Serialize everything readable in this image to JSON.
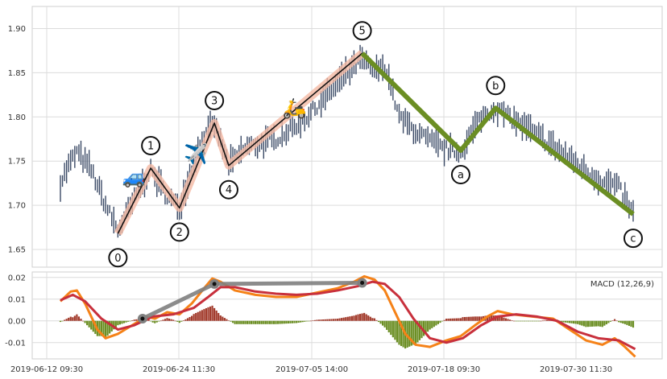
{
  "chart_data": [
    {
      "type": "candlestick",
      "panel": "price",
      "x_ticks": [
        "2019-06-12 09:30",
        "2019-06-24 11:30",
        "2019-07-05 14:00",
        "2019-07-18 09:30",
        "2019-07-30 11:30"
      ],
      "y_ticks": [
        "1.65",
        "1.70",
        "1.75",
        "1.80",
        "1.85",
        "1.90"
      ],
      "ylim": [
        1.63,
        1.925
      ],
      "grid": true,
      "n_bars": 280,
      "colors": {
        "bar": "#3b4a66",
        "impulse_line": "#111111",
        "impulse_band": "#f4b9a4",
        "correction_line": "#6b8e23"
      },
      "anchors": [
        {
          "i": 0,
          "p": 1.725
        },
        {
          "i": 4,
          "p": 1.745
        },
        {
          "i": 8,
          "p": 1.76
        },
        {
          "i": 15,
          "p": 1.74
        },
        {
          "i": 22,
          "p": 1.7
        },
        {
          "i": 28,
          "p": 1.672
        },
        {
          "i": 38,
          "p": 1.715
        },
        {
          "i": 44,
          "p": 1.74
        },
        {
          "i": 52,
          "p": 1.71
        },
        {
          "i": 58,
          "p": 1.698
        },
        {
          "i": 68,
          "p": 1.77
        },
        {
          "i": 75,
          "p": 1.792
        },
        {
          "i": 82,
          "p": 1.745
        },
        {
          "i": 90,
          "p": 1.765
        },
        {
          "i": 105,
          "p": 1.775
        },
        {
          "i": 120,
          "p": 1.8
        },
        {
          "i": 130,
          "p": 1.825
        },
        {
          "i": 140,
          "p": 1.85
        },
        {
          "i": 147,
          "p": 1.865
        },
        {
          "i": 153,
          "p": 1.85
        },
        {
          "i": 158,
          "p": 1.86
        },
        {
          "i": 165,
          "p": 1.8
        },
        {
          "i": 175,
          "p": 1.78
        },
        {
          "i": 185,
          "p": 1.765
        },
        {
          "i": 195,
          "p": 1.76
        },
        {
          "i": 205,
          "p": 1.8
        },
        {
          "i": 212,
          "p": 1.81
        },
        {
          "i": 222,
          "p": 1.795
        },
        {
          "i": 235,
          "p": 1.775
        },
        {
          "i": 250,
          "p": 1.75
        },
        {
          "i": 262,
          "p": 1.73
        },
        {
          "i": 272,
          "p": 1.72
        },
        {
          "i": 279,
          "p": 1.69
        }
      ],
      "wave_points": [
        {
          "label": "0",
          "i": 28,
          "p": 1.668,
          "pos": "below"
        },
        {
          "label": "1",
          "i": 44,
          "p": 1.742,
          "pos": "above"
        },
        {
          "label": "2",
          "i": 58,
          "p": 1.697,
          "pos": "below"
        },
        {
          "label": "3",
          "i": 75,
          "p": 1.793,
          "pos": "above"
        },
        {
          "label": "4",
          "i": 82,
          "p": 1.745,
          "pos": "below"
        },
        {
          "label": "5",
          "i": 147,
          "p": 1.872,
          "pos": "above"
        },
        {
          "label": "a",
          "i": 195,
          "p": 1.762,
          "pos": "below"
        },
        {
          "label": "b",
          "i": 212,
          "p": 1.81,
          "pos": "above"
        },
        {
          "label": "c",
          "i": 279,
          "p": 1.69,
          "pos": "below"
        }
      ],
      "emojis": [
        {
          "icon": "🚙",
          "i": 36,
          "p": 1.732
        },
        {
          "icon": "✈️",
          "i": 66,
          "p": 1.758
        },
        {
          "icon": "🛵",
          "i": 114,
          "p": 1.81
        }
      ]
    },
    {
      "type": "macd",
      "panel": "indicator",
      "legend": "MACD (12,26,9)",
      "legend_position": "top-right",
      "y_ticks": [
        "0.02",
        "0.01",
        "0.00",
        "-0.01"
      ],
      "ylim": [
        -0.0175,
        0.0225
      ],
      "grid": true,
      "colors": {
        "macd": "#f58218",
        "signal": "#c8303c",
        "hist_pos": "#a23b2c",
        "hist_neg": "#6b8e23",
        "divergence": "#808080"
      },
      "macd": [
        {
          "i": 0,
          "v": 0.009
        },
        {
          "i": 5,
          "v": 0.0135
        },
        {
          "i": 8,
          "v": 0.014
        },
        {
          "i": 12,
          "v": 0.008
        },
        {
          "i": 18,
          "v": -0.004
        },
        {
          "i": 22,
          "v": -0.008
        },
        {
          "i": 28,
          "v": -0.006
        },
        {
          "i": 35,
          "v": -0.002
        },
        {
          "i": 42,
          "v": 0.002
        },
        {
          "i": 46,
          "v": 0.001
        },
        {
          "i": 52,
          "v": 0.004
        },
        {
          "i": 58,
          "v": 0.003
        },
        {
          "i": 64,
          "v": 0.008
        },
        {
          "i": 70,
          "v": 0.015
        },
        {
          "i": 74,
          "v": 0.0195
        },
        {
          "i": 78,
          "v": 0.018
        },
        {
          "i": 85,
          "v": 0.014
        },
        {
          "i": 95,
          "v": 0.012
        },
        {
          "i": 105,
          "v": 0.011
        },
        {
          "i": 115,
          "v": 0.011
        },
        {
          "i": 125,
          "v": 0.013
        },
        {
          "i": 135,
          "v": 0.015
        },
        {
          "i": 143,
          "v": 0.018
        },
        {
          "i": 148,
          "v": 0.0205
        },
        {
          "i": 153,
          "v": 0.019
        },
        {
          "i": 158,
          "v": 0.014
        },
        {
          "i": 163,
          "v": 0.004
        },
        {
          "i": 168,
          "v": -0.006
        },
        {
          "i": 173,
          "v": -0.011
        },
        {
          "i": 180,
          "v": -0.012
        },
        {
          "i": 188,
          "v": -0.009
        },
        {
          "i": 195,
          "v": -0.007
        },
        {
          "i": 202,
          "v": -0.002
        },
        {
          "i": 208,
          "v": 0.002
        },
        {
          "i": 213,
          "v": 0.0045
        },
        {
          "i": 220,
          "v": 0.003
        },
        {
          "i": 230,
          "v": 0.002
        },
        {
          "i": 240,
          "v": 0.001
        },
        {
          "i": 248,
          "v": -0.004
        },
        {
          "i": 256,
          "v": -0.009
        },
        {
          "i": 264,
          "v": -0.011
        },
        {
          "i": 270,
          "v": -0.008
        },
        {
          "i": 275,
          "v": -0.012
        },
        {
          "i": 280,
          "v": -0.0165
        }
      ],
      "signal": [
        {
          "i": 0,
          "v": 0.0095
        },
        {
          "i": 6,
          "v": 0.012
        },
        {
          "i": 12,
          "v": 0.009
        },
        {
          "i": 20,
          "v": 0.001
        },
        {
          "i": 28,
          "v": -0.004
        },
        {
          "i": 36,
          "v": -0.002
        },
        {
          "i": 45,
          "v": 0.002
        },
        {
          "i": 55,
          "v": 0.003
        },
        {
          "i": 65,
          "v": 0.006
        },
        {
          "i": 72,
          "v": 0.011
        },
        {
          "i": 78,
          "v": 0.0155
        },
        {
          "i": 85,
          "v": 0.0155
        },
        {
          "i": 95,
          "v": 0.0135
        },
        {
          "i": 105,
          "v": 0.0125
        },
        {
          "i": 115,
          "v": 0.012
        },
        {
          "i": 125,
          "v": 0.0125
        },
        {
          "i": 135,
          "v": 0.014
        },
        {
          "i": 145,
          "v": 0.016
        },
        {
          "i": 152,
          "v": 0.018
        },
        {
          "i": 158,
          "v": 0.017
        },
        {
          "i": 165,
          "v": 0.011
        },
        {
          "i": 172,
          "v": 0.001
        },
        {
          "i": 180,
          "v": -0.008
        },
        {
          "i": 188,
          "v": -0.01
        },
        {
          "i": 196,
          "v": -0.008
        },
        {
          "i": 205,
          "v": -0.002
        },
        {
          "i": 213,
          "v": 0.002
        },
        {
          "i": 222,
          "v": 0.003
        },
        {
          "i": 232,
          "v": 0.002
        },
        {
          "i": 242,
          "v": 0.0
        },
        {
          "i": 252,
          "v": -0.005
        },
        {
          "i": 262,
          "v": -0.008
        },
        {
          "i": 272,
          "v": -0.009
        },
        {
          "i": 280,
          "v": -0.013
        }
      ],
      "divergence": [
        {
          "i": 40,
          "v": 0.001
        },
        {
          "i": 75,
          "v": 0.017
        },
        {
          "i": 147,
          "v": 0.0175
        }
      ]
    }
  ]
}
